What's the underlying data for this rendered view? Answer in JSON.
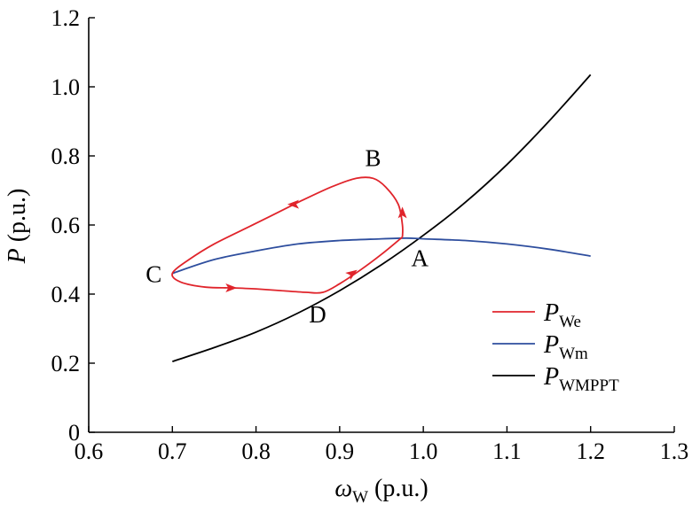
{
  "chart_data": {
    "type": "line",
    "xlabel": {
      "symbol": "ω",
      "subscript": "W",
      "unit": " (p.u.)"
    },
    "ylabel": {
      "symbol": "P",
      "unit": " (p.u.)"
    },
    "xlim": [
      0.6,
      1.3
    ],
    "ylim": [
      0,
      1.2
    ],
    "x_ticks": [
      "0.6",
      "0.7",
      "0.8",
      "0.9",
      "1.0",
      "1.1",
      "1.2",
      "1.3"
    ],
    "y_ticks": [
      "0",
      "0.2",
      "0.4",
      "0.6",
      "0.8",
      "1.0",
      "1.2"
    ],
    "grid": false,
    "legend_position": "bottom-right",
    "series": [
      {
        "name": "P",
        "subscript": "We",
        "color": "#e0242b",
        "x": [
          0.975,
          0.975,
          0.97,
          0.955,
          0.94,
          0.92,
          0.89,
          0.85,
          0.8,
          0.75,
          0.72,
          0.7,
          0.71,
          0.74,
          0.77,
          0.8,
          0.83,
          0.86,
          0.88,
          0.9,
          0.925,
          0.95,
          0.975
        ],
        "y": [
          0.565,
          0.6,
          0.66,
          0.71,
          0.735,
          0.735,
          0.71,
          0.665,
          0.605,
          0.545,
          0.5,
          0.46,
          0.435,
          0.42,
          0.418,
          0.415,
          0.41,
          0.405,
          0.405,
          0.43,
          0.47,
          0.515,
          0.565
        ],
        "arrows": [
          {
            "x": 0.975,
            "y": 0.635,
            "dir": "up"
          },
          {
            "x": 0.845,
            "y": 0.66,
            "dir": "left"
          },
          {
            "x": 0.77,
            "y": 0.418,
            "dir": "right"
          },
          {
            "x": 0.915,
            "y": 0.46,
            "dir": "up-right"
          }
        ]
      },
      {
        "name": "P",
        "subscript": "Wm",
        "color": "#2e4e9e",
        "x": [
          0.7,
          0.75,
          0.8,
          0.85,
          0.9,
          0.95,
          0.98,
          1.0,
          1.05,
          1.1,
          1.15,
          1.2
        ],
        "y": [
          0.46,
          0.5,
          0.525,
          0.545,
          0.555,
          0.56,
          0.562,
          0.56,
          0.555,
          0.545,
          0.53,
          0.51
        ]
      },
      {
        "name": "P",
        "subscript": "WMPPT",
        "color": "#000000",
        "x": [
          0.7,
          0.75,
          0.8,
          0.85,
          0.9,
          0.95,
          1.0,
          1.05,
          1.1,
          1.15,
          1.2
        ],
        "y": [
          0.205,
          0.245,
          0.29,
          0.345,
          0.41,
          0.485,
          0.57,
          0.665,
          0.775,
          0.9,
          1.035
        ]
      }
    ],
    "annotations": [
      {
        "label": "A",
        "x": 0.977,
        "y": 0.563,
        "pos": "below-right"
      },
      {
        "label": "B",
        "x": 0.942,
        "y": 0.735,
        "pos": "above"
      },
      {
        "label": "C",
        "x": 0.7,
        "y": 0.46,
        "pos": "left"
      },
      {
        "label": "D",
        "x": 0.88,
        "y": 0.405,
        "pos": "below"
      }
    ]
  }
}
